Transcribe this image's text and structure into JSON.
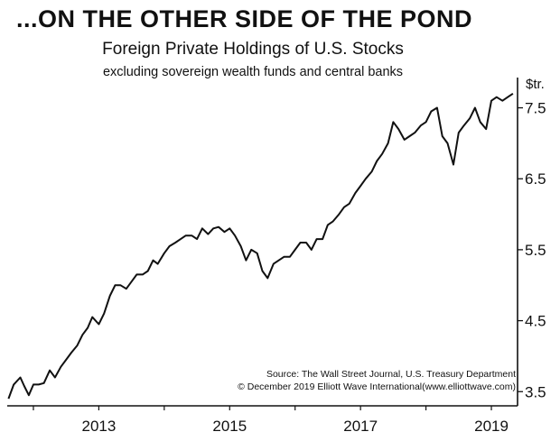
{
  "header": {
    "title": "...ON THE OTHER SIDE OF THE POND",
    "subtitle": "Foreign Private Holdings of U.S. Stocks",
    "note": "excluding sovereign wealth funds and central banks"
  },
  "footer": {
    "source": "Source: The Wall Street Journal, U.S. Treasury Department",
    "copyright": "© December 2019 Elliott Wave International(www.elliottwave.com)"
  },
  "colors": {
    "line": "#111111",
    "axis": "#111111",
    "background": "#ffffff"
  },
  "chart_data": {
    "type": "line",
    "title": "Foreign Private Holdings of U.S. Stocks",
    "y_unit_label": "$tr.",
    "xlim": [
      2011.6,
      2019.4
    ],
    "ylim": [
      3.3,
      7.85
    ],
    "x_ticks": [
      2013,
      2015,
      2017,
      2019
    ],
    "x_tick_labels": [
      "2013",
      "2015",
      "2017",
      "2019"
    ],
    "y_ticks": [
      3.5,
      4.5,
      5.5,
      6.5,
      7.5
    ],
    "y_tick_labels": [
      "3.5",
      "4.5",
      "5.5",
      "6.5",
      "7.5"
    ],
    "grid": false,
    "series": [
      {
        "x": [
          2011.62,
          2011.7,
          2011.8,
          2011.86,
          2011.93,
          2012.0,
          2012.08,
          2012.16,
          2012.25,
          2012.33,
          2012.42,
          2012.5,
          2012.58,
          2012.67,
          2012.75,
          2012.83,
          2012.9,
          2013.0,
          2013.08,
          2013.17,
          2013.25,
          2013.33,
          2013.42,
          2013.5,
          2013.58,
          2013.67,
          2013.75,
          2013.83,
          2013.9,
          2014.0,
          2014.08,
          2014.17,
          2014.25,
          2014.33,
          2014.42,
          2014.5,
          2014.58,
          2014.67,
          2014.75,
          2014.83,
          2014.92,
          2015.0,
          2015.08,
          2015.17,
          2015.25,
          2015.33,
          2015.42,
          2015.5,
          2015.58,
          2015.67,
          2015.75,
          2015.83,
          2015.92,
          2016.0,
          2016.08,
          2016.17,
          2016.25,
          2016.33,
          2016.42,
          2016.5,
          2016.58,
          2016.67,
          2016.75,
          2016.83,
          2016.92,
          2017.0,
          2017.08,
          2017.17,
          2017.25,
          2017.33,
          2017.42,
          2017.5,
          2017.58,
          2017.67,
          2017.75,
          2017.83,
          2017.92,
          2018.0,
          2018.08,
          2018.17,
          2018.25,
          2018.33,
          2018.42,
          2018.5,
          2018.58,
          2018.67,
          2018.75,
          2018.83,
          2018.92,
          2019.0,
          2019.08,
          2019.17,
          2019.25,
          2019.33
        ],
        "values": [
          3.4,
          3.6,
          3.7,
          3.58,
          3.45,
          3.6,
          3.6,
          3.62,
          3.8,
          3.7,
          3.85,
          3.95,
          4.05,
          4.15,
          4.3,
          4.4,
          4.55,
          4.45,
          4.6,
          4.85,
          5.0,
          5.0,
          4.95,
          5.05,
          5.15,
          5.15,
          5.2,
          5.35,
          5.3,
          5.45,
          5.55,
          5.6,
          5.65,
          5.7,
          5.7,
          5.65,
          5.8,
          5.72,
          5.8,
          5.82,
          5.75,
          5.8,
          5.7,
          5.55,
          5.35,
          5.5,
          5.45,
          5.2,
          5.1,
          5.3,
          5.35,
          5.4,
          5.4,
          5.5,
          5.6,
          5.6,
          5.5,
          5.65,
          5.65,
          5.85,
          5.9,
          6.0,
          6.1,
          6.15,
          6.3,
          6.4,
          6.5,
          6.6,
          6.75,
          6.85,
          7.0,
          7.3,
          7.2,
          7.05,
          7.1,
          7.15,
          7.25,
          7.3,
          7.45,
          7.5,
          7.1,
          7.0,
          6.7,
          7.15,
          7.25,
          7.35,
          7.5,
          7.3,
          7.2,
          7.6,
          7.65,
          7.6,
          7.65,
          7.7
        ]
      }
    ]
  }
}
